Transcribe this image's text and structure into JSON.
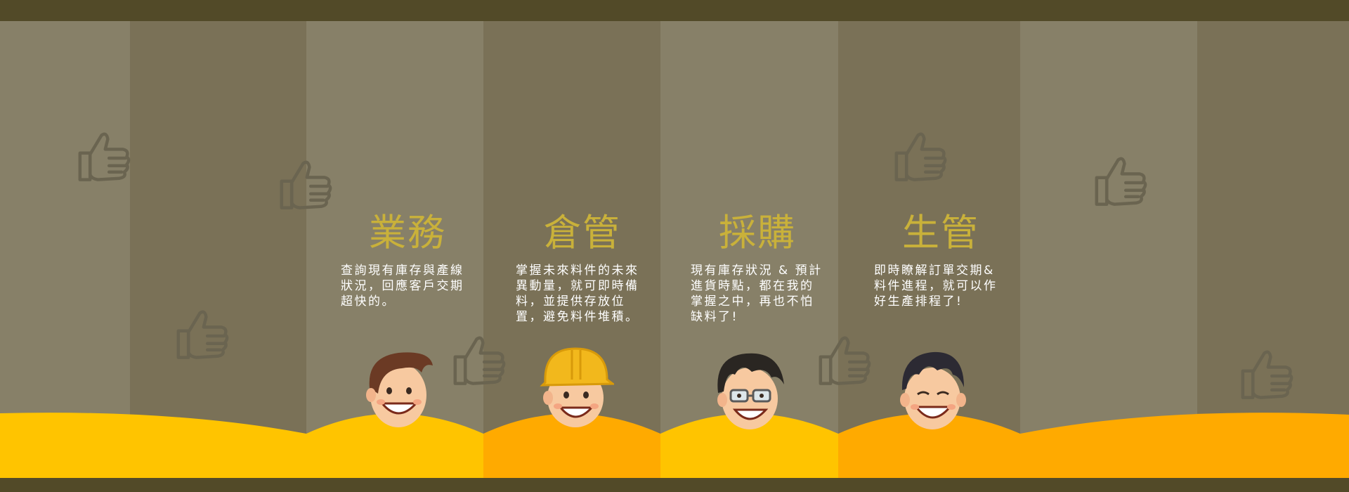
{
  "roles": [
    {
      "title": "業務",
      "description": "查詢現有庫存與產線狀況，回應客戶交期超快的。",
      "avatar": "businessman-face-icon",
      "hair_color": "#6b3a24"
    },
    {
      "title": "倉管",
      "description": "掌握未來料件的未來異動量，就可即時備料，並提供存放位置，避免料件堆積。",
      "avatar": "hardhat-worker-face-icon",
      "hair_color": "#f2b81c"
    },
    {
      "title": "採購",
      "description": "現有庫存狀況 & 預計進貨時點，都在我的掌握之中，再也不怕缺料了!",
      "avatar": "glasses-man-face-icon",
      "hair_color": "#2a2622"
    },
    {
      "title": "生管",
      "description": "即時瞭解訂單交期&料件進程，就可以作好生產排程了!",
      "avatar": "smiling-man-face-icon",
      "hair_color": "#2c2a33"
    }
  ],
  "colors": {
    "frame": "#524a28",
    "stripe_light": "#878068",
    "stripe_dark": "#7a7157",
    "hill_yellow": "#ffc400",
    "hill_orange": "#ffaa00",
    "title_gold": "#c9b13a",
    "text_white": "#ffffff",
    "thumb_outline": "#6a6450"
  },
  "decorations": [
    "thumbs-up-icon"
  ]
}
